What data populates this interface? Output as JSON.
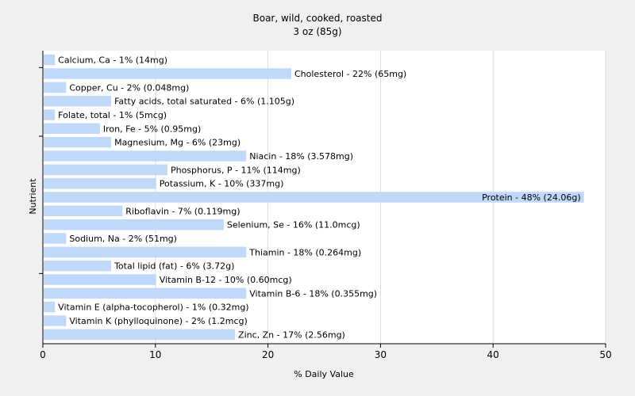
{
  "chart_data": {
    "type": "bar",
    "orientation": "horizontal",
    "title": "Boar, wild, cooked, roasted",
    "subtitle": "3 oz (85g)",
    "xlabel": "% Daily Value",
    "ylabel": "Nutrient",
    "xlim": [
      0,
      50
    ],
    "xticks": [
      0,
      10,
      20,
      30,
      40,
      50
    ],
    "grid": true,
    "colors": {
      "bar": "#bfd9fb",
      "background": "#f0f0f0",
      "plot_area": "#ffffff",
      "grid": "#dddddd",
      "axis": "#000000"
    },
    "categories": [
      "Calcium, Ca",
      "Cholesterol",
      "Copper, Cu",
      "Fatty acids, total saturated",
      "Folate, total",
      "Iron, Fe",
      "Magnesium, Mg",
      "Niacin",
      "Phosphorus, P",
      "Potassium, K",
      "Protein",
      "Riboflavin",
      "Selenium, Se",
      "Sodium, Na",
      "Thiamin",
      "Total lipid (fat)",
      "Vitamin B-12",
      "Vitamin B-6",
      "Vitamin E (alpha-tocopherol)",
      "Vitamin K (phylloquinone)",
      "Zinc, Zn"
    ],
    "values": [
      1,
      22,
      2,
      6,
      1,
      5,
      6,
      18,
      11,
      10,
      48,
      7,
      16,
      2,
      18,
      6,
      10,
      18,
      1,
      2,
      17
    ],
    "labels": [
      "Calcium, Ca - 1% (14mg)",
      "Cholesterol - 22% (65mg)",
      "Copper, Cu - 2% (0.048mg)",
      "Fatty acids, total saturated - 6% (1.105g)",
      "Folate, total - 1% (5mcg)",
      "Iron, Fe - 5% (0.95mg)",
      "Magnesium, Mg - 6% (23mg)",
      "Niacin - 18% (3.578mg)",
      "Phosphorus, P - 11% (114mg)",
      "Potassium, K - 10% (337mg)",
      "Protein - 48% (24.06g)",
      "Riboflavin - 7% (0.119mg)",
      "Selenium, Se - 16% (11.0mcg)",
      "Sodium, Na - 2% (51mg)",
      "Thiamin - 18% (0.264mg)",
      "Total lipid (fat) - 6% (3.72g)",
      "Vitamin B-12 - 10% (0.60mcg)",
      "Vitamin B-6 - 18% (0.355mg)",
      "Vitamin E (alpha-tocopherol) - 1% (0.32mg)",
      "Vitamin K (phylloquinone) - 2% (1.2mcg)",
      "Zinc, Zn - 17% (2.56mg)"
    ]
  }
}
